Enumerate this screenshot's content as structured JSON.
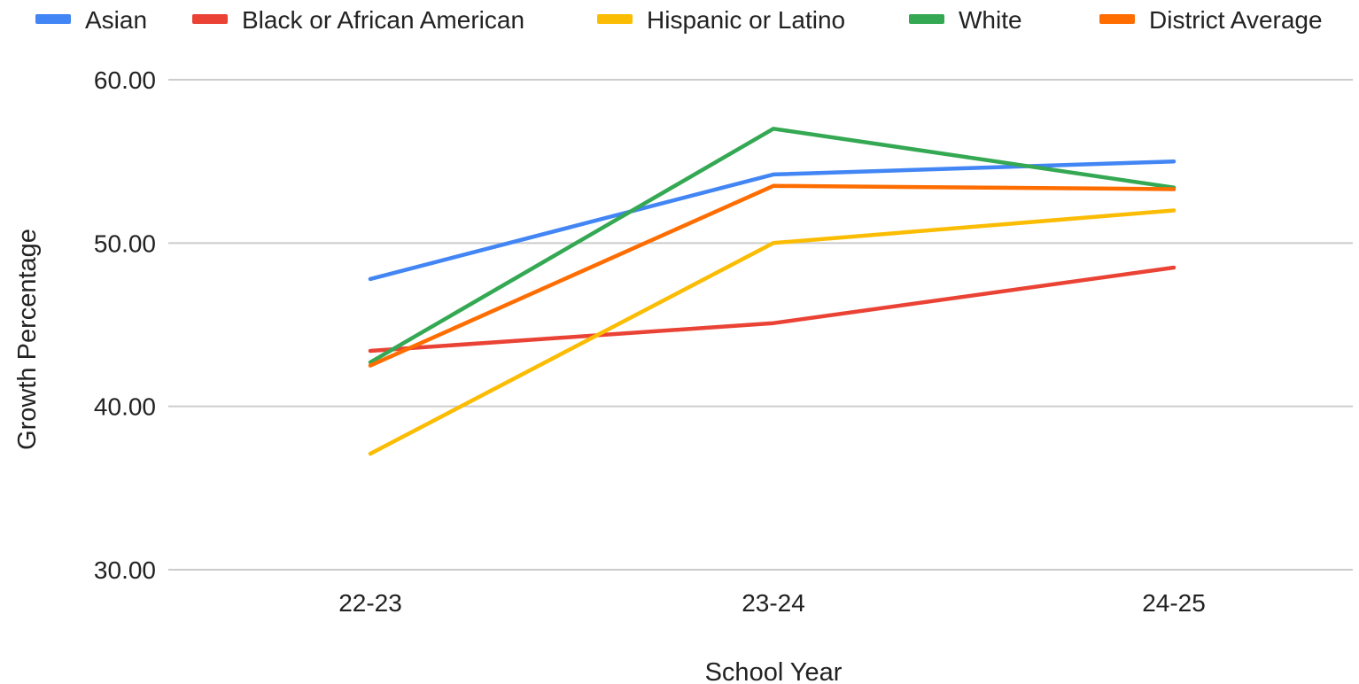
{
  "chart_data": {
    "type": "line",
    "title": "",
    "xlabel": "School Year",
    "ylabel": "Growth Percentage",
    "categories": [
      "22-23",
      "23-24",
      "24-25"
    ],
    "ylim": [
      30,
      60
    ],
    "yticks": [
      "30.00",
      "40.00",
      "50.00",
      "60.00"
    ],
    "ytick_values": [
      30,
      40,
      50,
      60
    ],
    "grid": true,
    "legend_position": "top",
    "series": [
      {
        "name": "Asian",
        "color": "#4285f4",
        "values": [
          47.8,
          54.2,
          55.0
        ]
      },
      {
        "name": "Black or African American",
        "color": "#ea4335",
        "values": [
          43.4,
          45.1,
          48.5
        ]
      },
      {
        "name": "Hispanic or Latino",
        "color": "#fbbc04",
        "values": [
          37.1,
          50.0,
          52.0
        ]
      },
      {
        "name": "White",
        "color": "#34a853",
        "values": [
          42.7,
          57.0,
          53.4
        ]
      },
      {
        "name": "District Average",
        "color": "#ff6d01",
        "values": [
          42.5,
          53.5,
          53.3
        ]
      }
    ]
  }
}
